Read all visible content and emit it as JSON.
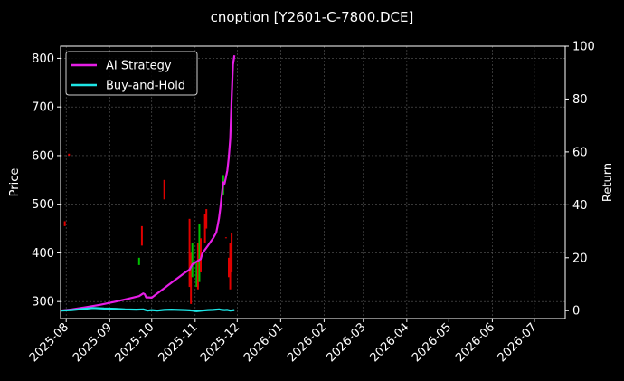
{
  "chart_data": {
    "type": "line",
    "title": "cnoption [Y2601-C-7800.DCE]",
    "xlabel": "",
    "ylabel": "Price",
    "y2label": "Return",
    "background": "#000000",
    "grid": true,
    "legend_position": "top-left",
    "x_ticks": [
      "2025-08",
      "2025-09",
      "2025-10",
      "2025-11",
      "2025-12",
      "2026-01",
      "2026-02",
      "2026-03",
      "2026-04",
      "2026-05",
      "2026-06",
      "2026-07"
    ],
    "xlim": [
      "2025-07-28",
      "2026-07-23"
    ],
    "y_ticks": [
      "300",
      "400",
      "500",
      "600",
      "700",
      "800"
    ],
    "ylim": [
      265,
      825
    ],
    "y2_ticks": [
      "0",
      "20",
      "40",
      "60",
      "80",
      "100"
    ],
    "y2lim": [
      -3,
      100
    ],
    "series": [
      {
        "name": "AI Strategy",
        "color": "#e61ee6",
        "axis": "return",
        "points": [
          [
            "2025-07-28",
            0.0
          ],
          [
            "2025-08-05",
            0.5
          ],
          [
            "2025-08-15",
            1.3
          ],
          [
            "2025-08-25",
            2.2
          ],
          [
            "2025-09-05",
            3.4
          ],
          [
            "2025-09-15",
            4.6
          ],
          [
            "2025-09-22",
            5.5
          ],
          [
            "2025-09-25",
            6.5
          ],
          [
            "2025-09-26",
            6.2
          ],
          [
            "2025-09-27",
            5.0
          ],
          [
            "2025-09-29",
            5.0
          ],
          [
            "2025-10-01",
            4.9
          ],
          [
            "2025-10-05",
            6.5
          ],
          [
            "2025-10-10",
            8.5
          ],
          [
            "2025-10-15",
            10.5
          ],
          [
            "2025-10-20",
            12.5
          ],
          [
            "2025-10-25",
            14.5
          ],
          [
            "2025-10-28",
            15.5
          ],
          [
            "2025-10-30",
            17.5
          ],
          [
            "2025-11-02",
            18.5
          ],
          [
            "2025-11-05",
            19.5
          ],
          [
            "2025-11-06",
            21.5
          ],
          [
            "2025-11-08",
            23.0
          ],
          [
            "2025-11-10",
            24.5
          ],
          [
            "2025-11-12",
            26.0
          ],
          [
            "2025-11-14",
            27.5
          ],
          [
            "2025-11-16",
            29.5
          ],
          [
            "2025-11-17",
            32.0
          ],
          [
            "2025-11-18",
            35.0
          ],
          [
            "2025-11-19",
            39.0
          ],
          [
            "2025-11-20",
            44.0
          ],
          [
            "2025-11-21",
            48.5
          ],
          [
            "2025-11-22",
            48.0
          ],
          [
            "2025-11-23",
            50.5
          ],
          [
            "2025-11-24",
            53.0
          ],
          [
            "2025-11-25",
            58.0
          ],
          [
            "2025-11-26",
            65.0
          ],
          [
            "2025-11-27",
            80.0
          ],
          [
            "2025-11-28",
            93.0
          ],
          [
            "2025-11-29",
            96.5
          ]
        ]
      },
      {
        "name": "Buy-and-Hold",
        "color": "#1ee6e6",
        "axis": "return",
        "points": [
          [
            "2025-07-28",
            0.0
          ],
          [
            "2025-08-05",
            0.2
          ],
          [
            "2025-08-12",
            0.6
          ],
          [
            "2025-08-20",
            1.0
          ],
          [
            "2025-08-28",
            0.8
          ],
          [
            "2025-09-05",
            0.7
          ],
          [
            "2025-09-12",
            0.5
          ],
          [
            "2025-09-20",
            0.4
          ],
          [
            "2025-09-25",
            0.5
          ],
          [
            "2025-09-28",
            0.0
          ],
          [
            "2025-10-01",
            0.2
          ],
          [
            "2025-10-05",
            0.0
          ],
          [
            "2025-10-10",
            0.3
          ],
          [
            "2025-10-15",
            0.4
          ],
          [
            "2025-10-20",
            0.3
          ],
          [
            "2025-10-25",
            0.2
          ],
          [
            "2025-10-28",
            0.1
          ],
          [
            "2025-10-30",
            0.0
          ],
          [
            "2025-11-02",
            -0.2
          ],
          [
            "2025-11-06",
            0.0
          ],
          [
            "2025-11-10",
            0.2
          ],
          [
            "2025-11-14",
            0.3
          ],
          [
            "2025-11-18",
            0.5
          ],
          [
            "2025-11-20",
            0.3
          ],
          [
            "2025-11-22",
            0.2
          ],
          [
            "2025-11-24",
            0.3
          ],
          [
            "2025-11-26",
            0.0
          ],
          [
            "2025-11-29",
            0.2
          ]
        ]
      }
    ],
    "candles": {
      "up_color": "#00c000",
      "down_color": "#e00000",
      "items": [
        {
          "date": "2025-07-31",
          "low": 455,
          "high": 465,
          "dir": "down"
        },
        {
          "date": "2025-08-03",
          "low": 600,
          "high": 604,
          "dir": "down"
        },
        {
          "date": "2025-09-22",
          "low": 375,
          "high": 390,
          "dir": "up"
        },
        {
          "date": "2025-09-24",
          "low": 415,
          "high": 455,
          "dir": "down"
        },
        {
          "date": "2025-10-10",
          "low": 510,
          "high": 550,
          "dir": "down"
        },
        {
          "date": "2025-10-28",
          "low": 330,
          "high": 470,
          "dir": "down"
        },
        {
          "date": "2025-10-29",
          "low": 295,
          "high": 400,
          "dir": "down"
        },
        {
          "date": "2025-10-30",
          "low": 350,
          "high": 420,
          "dir": "up"
        },
        {
          "date": "2025-11-02",
          "low": 330,
          "high": 380,
          "dir": "up"
        },
        {
          "date": "2025-11-03",
          "low": 325,
          "high": 420,
          "dir": "down"
        },
        {
          "date": "2025-11-04",
          "low": 340,
          "high": 460,
          "dir": "up"
        },
        {
          "date": "2025-11-05",
          "low": 360,
          "high": 430,
          "dir": "down"
        },
        {
          "date": "2025-11-08",
          "low": 420,
          "high": 480,
          "dir": "down"
        },
        {
          "date": "2025-11-09",
          "low": 450,
          "high": 490,
          "dir": "down"
        },
        {
          "date": "2025-11-21",
          "low": 520,
          "high": 560,
          "dir": "up"
        },
        {
          "date": "2025-11-23",
          "low": 430,
          "high": 432,
          "dir": "down"
        },
        {
          "date": "2025-11-25",
          "low": 350,
          "high": 390,
          "dir": "down"
        },
        {
          "date": "2025-11-26",
          "low": 325,
          "high": 420,
          "dir": "down"
        },
        {
          "date": "2025-11-27",
          "low": 360,
          "high": 440,
          "dir": "down"
        }
      ]
    }
  }
}
